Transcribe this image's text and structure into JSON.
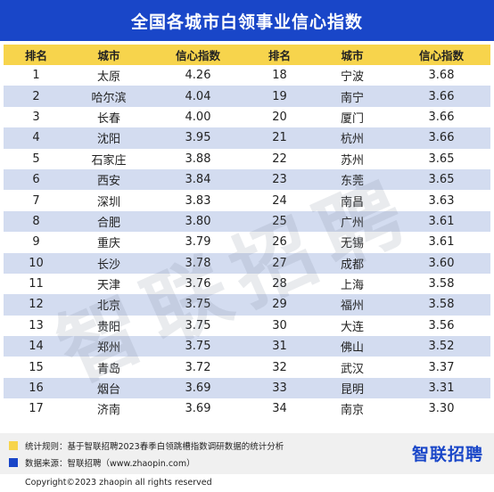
{
  "title": "全国各城市白领事业信心指数",
  "headers": [
    "排名",
    "城市",
    "信心指数",
    "排名",
    "城市",
    "信心指数"
  ],
  "rows": [
    {
      "rank_left": "1",
      "city_left": "太原",
      "index_left": "4.26",
      "rank_right": "18",
      "city_right": "宁波",
      "index_right": "3.68"
    },
    {
      "rank_left": "2",
      "city_left": "哈尔滨",
      "index_left": "4.04",
      "rank_right": "19",
      "city_right": "南宁",
      "index_right": "3.66"
    },
    {
      "rank_left": "3",
      "city_left": "长春",
      "index_left": "4.00",
      "rank_right": "20",
      "city_right": "厦门",
      "index_right": "3.66"
    },
    {
      "rank_left": "4",
      "city_left": "沈阳",
      "index_left": "3.95",
      "rank_right": "21",
      "city_right": "杭州",
      "index_right": "3.66"
    },
    {
      "rank_left": "5",
      "city_left": "石家庄",
      "index_left": "3.88",
      "rank_right": "22",
      "city_right": "苏州",
      "index_right": "3.65"
    },
    {
      "rank_left": "6",
      "city_left": "西安",
      "index_left": "3.84",
      "rank_right": "23",
      "city_right": "东莞",
      "index_right": "3.65"
    },
    {
      "rank_left": "7",
      "city_left": "深圳",
      "index_left": "3.83",
      "rank_right": "24",
      "city_right": "南昌",
      "index_right": "3.63"
    },
    {
      "rank_left": "8",
      "city_left": "合肥",
      "index_left": "3.80",
      "rank_right": "25",
      "city_right": "广州",
      "index_right": "3.61"
    },
    {
      "rank_left": "9",
      "city_left": "重庆",
      "index_left": "3.79",
      "rank_right": "26",
      "city_right": "无锡",
      "index_right": "3.61"
    },
    {
      "rank_left": "10",
      "city_left": "长沙",
      "index_left": "3.78",
      "rank_right": "27",
      "city_right": "成都",
      "index_right": "3.60"
    },
    {
      "rank_left": "11",
      "city_left": "天津",
      "index_left": "3.76",
      "rank_right": "28",
      "city_right": "上海",
      "index_right": "3.58"
    },
    {
      "rank_left": "12",
      "city_left": "北京",
      "index_left": "3.75",
      "rank_right": "29",
      "city_right": "福州",
      "index_right": "3.58"
    },
    {
      "rank_left": "13",
      "city_left": "贵阳",
      "index_left": "3.75",
      "rank_right": "30",
      "city_right": "大连",
      "index_right": "3.56"
    },
    {
      "rank_left": "14",
      "city_left": "郑州",
      "index_left": "3.75",
      "rank_right": "31",
      "city_right": "佛山",
      "index_right": "3.52"
    },
    {
      "rank_left": "15",
      "city_left": "青岛",
      "index_left": "3.72",
      "rank_right": "32",
      "city_right": "武汉",
      "index_right": "3.37"
    },
    {
      "rank_left": "16",
      "city_left": "烟台",
      "index_left": "3.69",
      "rank_right": "33",
      "city_right": "昆明",
      "index_right": "3.31"
    },
    {
      "rank_left": "17",
      "city_left": "济南",
      "index_left": "3.69",
      "rank_right": "34",
      "city_right": "南京",
      "index_right": "3.30"
    }
  ],
  "footer": {
    "note_label": "统计规则：",
    "note_text": "基于智联招聘2023春季白领跳槽指数调研数据的统计分析",
    "note_color": "#f7d44c",
    "source_label": "数据来源：",
    "source_text": "智联招聘（www.zhaopin.com）",
    "source_color": "#1946c8",
    "brand": "智联招聘"
  },
  "watermark": "智联招聘",
  "copyright": "Copyright©2023 zhaopin all rights reserved",
  "colors": {
    "title_bg": "#1946c8",
    "header_bg": "#f7d44c",
    "row_alt_bg": "#d3dcf0"
  }
}
